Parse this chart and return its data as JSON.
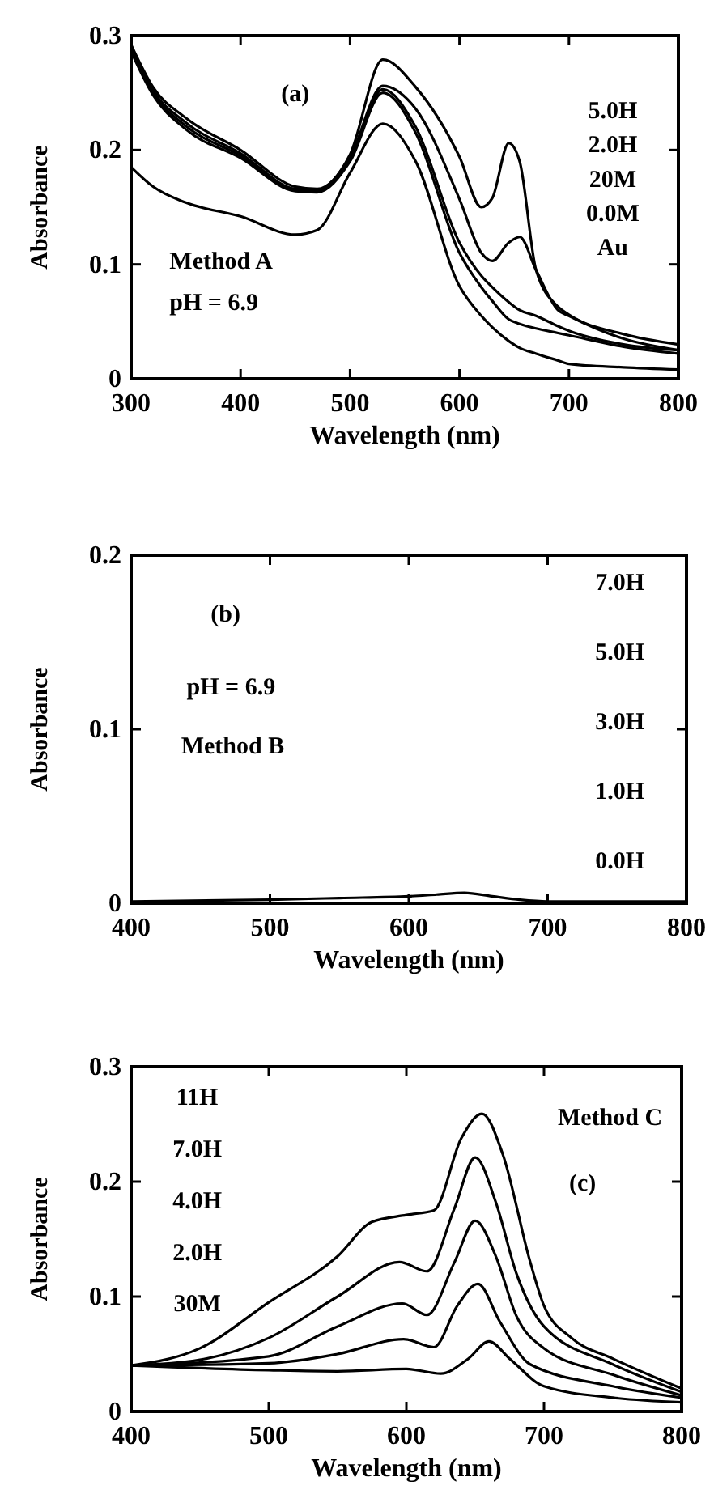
{
  "chart_data": [
    {
      "type": "line",
      "xlabel": "Wavelength (nm)",
      "ylabel": "Absorbance",
      "xlim": [
        300,
        800
      ],
      "ylim": [
        0,
        0.3
      ],
      "xticks": [
        300,
        400,
        500,
        600,
        700,
        800
      ],
      "yticks": [
        0,
        0.1,
        0.2,
        0.3
      ],
      "line_style": "solid",
      "annotations": [
        "(a)",
        "Method A",
        "pH = 6.9",
        "5.0H",
        "2.0H",
        "20M",
        "0.0M",
        "Au"
      ],
      "x": [
        300,
        320,
        350,
        400,
        450,
        470,
        500,
        530,
        560,
        600,
        620,
        630,
        645,
        655,
        670,
        690,
        700,
        750,
        800
      ],
      "series": [
        {
          "color": "#000000",
          "values": [
            0.292,
            0.255,
            0.228,
            0.2,
            0.168,
            0.166,
            0.196,
            0.279,
            0.255,
            0.194,
            0.15,
            0.158,
            0.206,
            0.19,
            0.095,
            0.063,
            0.056,
            0.039,
            0.03
          ]
        },
        {
          "color": "#000000",
          "values": [
            0.29,
            0.252,
            0.224,
            0.197,
            0.166,
            0.165,
            0.194,
            0.256,
            0.236,
            0.157,
            0.11,
            0.103,
            0.119,
            0.124,
            0.095,
            0.06,
            0.055,
            0.035,
            0.025
          ]
        },
        {
          "color": "#000000",
          "values": [
            0.288,
            0.25,
            0.221,
            0.195,
            0.165,
            0.164,
            0.192,
            0.253,
            0.22,
            0.119,
            0.09,
            0.08,
            0.067,
            0.06,
            0.055,
            0.046,
            0.042,
            0.03,
            0.025
          ]
        },
        {
          "color": "#000000",
          "values": [
            0.286,
            0.248,
            0.218,
            0.193,
            0.164,
            0.163,
            0.19,
            0.25,
            0.215,
            0.11,
            0.08,
            0.068,
            0.052,
            0.048,
            0.044,
            0.04,
            0.038,
            0.028,
            0.022
          ]
        },
        {
          "color": "#000000",
          "values": [
            0.185,
            0.168,
            0.154,
            0.142,
            0.126,
            0.13,
            0.18,
            0.223,
            0.19,
            0.081,
            0.055,
            0.045,
            0.033,
            0.027,
            0.022,
            0.016,
            0.013,
            0.01,
            0.008
          ]
        }
      ]
    },
    {
      "type": "line",
      "xlabel": "Wavelength (nm)",
      "ylabel": "Absorbance",
      "xlim": [
        400,
        800
      ],
      "ylim": [
        0,
        0.2
      ],
      "xticks": [
        400,
        500,
        600,
        700,
        800
      ],
      "yticks": [
        0,
        0.1,
        0.2
      ],
      "line_style": "solid",
      "annotations": [
        "(b)",
        "pH = 6.9",
        "Method B",
        "7.0H",
        "5.0H",
        "3.0H",
        "1.0H",
        "0.0H"
      ],
      "x": [
        400,
        500,
        550,
        600,
        620,
        640,
        660,
        680,
        700,
        750,
        800
      ],
      "series": [
        {
          "color": "#000000",
          "values": [
            0.001,
            0.002,
            0.003,
            0.004,
            0.005,
            0.006,
            0.004,
            0.002,
            0.001,
            0.001,
            0.001
          ]
        }
      ]
    },
    {
      "type": "line",
      "xlabel": "Wavelength (nm)",
      "ylabel": "Absorbance",
      "xlim": [
        400,
        800
      ],
      "ylim": [
        0,
        0.3
      ],
      "xticks": [
        400,
        500,
        600,
        700,
        800
      ],
      "yticks": [
        0,
        0.1,
        0.2,
        0.3
      ],
      "line_style": "solid",
      "annotations": [
        "Method C",
        "(c)",
        "11H",
        "7.0H",
        "4.0H",
        "2.0H",
        "30M"
      ],
      "series": [
        {
          "color": "#000000",
          "x": [
            400,
            450,
            500,
            550,
            575,
            600,
            620,
            640,
            655,
            670,
            690,
            700,
            720,
            750,
            800
          ],
          "values": [
            0.04,
            0.055,
            0.095,
            0.135,
            0.165,
            0.171,
            0.175,
            0.238,
            0.259,
            0.224,
            0.13,
            0.092,
            0.064,
            0.046,
            0.02
          ]
        },
        {
          "color": "#000000",
          "x": [
            400,
            450,
            500,
            550,
            595,
            615,
            635,
            650,
            665,
            680,
            700,
            750,
            800
          ],
          "values": [
            0.04,
            0.045,
            0.064,
            0.1,
            0.13,
            0.122,
            0.177,
            0.221,
            0.182,
            0.12,
            0.074,
            0.041,
            0.017
          ]
        },
        {
          "color": "#000000",
          "x": [
            400,
            500,
            550,
            597,
            615,
            635,
            650,
            665,
            680,
            700,
            750,
            800
          ],
          "values": [
            0.04,
            0.048,
            0.074,
            0.094,
            0.084,
            0.13,
            0.166,
            0.135,
            0.083,
            0.055,
            0.032,
            0.014
          ]
        },
        {
          "color": "#000000",
          "x": [
            400,
            500,
            550,
            598,
            620,
            637,
            652,
            668,
            690,
            750,
            800
          ],
          "values": [
            0.04,
            0.042,
            0.05,
            0.063,
            0.056,
            0.092,
            0.111,
            0.078,
            0.041,
            0.022,
            0.012
          ]
        },
        {
          "color": "#000000",
          "x": [
            400,
            500,
            550,
            600,
            625,
            645,
            660,
            675,
            700,
            750,
            800
          ],
          "values": [
            0.04,
            0.036,
            0.035,
            0.037,
            0.033,
            0.046,
            0.061,
            0.046,
            0.022,
            0.012,
            0.008
          ]
        }
      ]
    }
  ]
}
